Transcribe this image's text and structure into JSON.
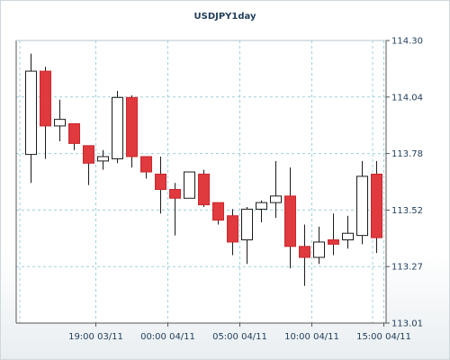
{
  "chart_data": {
    "type": "candlestick",
    "title": "USDJPY1day",
    "xlabel": "",
    "ylabel": "",
    "ylim": [
      113.01,
      114.3
    ],
    "y_ticks": [
      "114.30",
      "114.04",
      "113.78",
      "113.52",
      "113.27",
      "113.01"
    ],
    "x_ticks": [
      {
        "label": "19:00 03/11",
        "index": 4.5
      },
      {
        "label": "00:00 04/11",
        "index": 9.5
      },
      {
        "label": "05:00 04/11",
        "index": 14.5
      },
      {
        "label": "10:00 04/11",
        "index": 19.5
      },
      {
        "label": "15:00 04/11",
        "index": 24.5
      }
    ],
    "grid": true,
    "up_color": "#ffffff",
    "down_color": "#e0393e",
    "candles": [
      {
        "open": 113.78,
        "high": 114.24,
        "low": 113.65,
        "close": 114.16
      },
      {
        "open": 114.16,
        "high": 114.18,
        "low": 113.76,
        "close": 113.91
      },
      {
        "open": 113.91,
        "high": 114.03,
        "low": 113.84,
        "close": 113.94
      },
      {
        "open": 113.92,
        "high": 113.92,
        "low": 113.8,
        "close": 113.83
      },
      {
        "open": 113.82,
        "high": 113.82,
        "low": 113.64,
        "close": 113.74
      },
      {
        "open": 113.75,
        "high": 113.8,
        "low": 113.71,
        "close": 113.77
      },
      {
        "open": 113.76,
        "high": 114.07,
        "low": 113.74,
        "close": 114.04
      },
      {
        "open": 114.04,
        "high": 114.05,
        "low": 113.72,
        "close": 113.77
      },
      {
        "open": 113.77,
        "high": 113.77,
        "low": 113.67,
        "close": 113.7
      },
      {
        "open": 113.69,
        "high": 113.77,
        "low": 113.51,
        "close": 113.62
      },
      {
        "open": 113.62,
        "high": 113.65,
        "low": 113.41,
        "close": 113.58
      },
      {
        "open": 113.58,
        "high": 113.7,
        "low": 113.58,
        "close": 113.7
      },
      {
        "open": 113.69,
        "high": 113.71,
        "low": 113.54,
        "close": 113.55
      },
      {
        "open": 113.56,
        "high": 113.56,
        "low": 113.46,
        "close": 113.48
      },
      {
        "open": 113.5,
        "high": 113.53,
        "low": 113.32,
        "close": 113.38
      },
      {
        "open": 113.39,
        "high": 113.54,
        "low": 113.28,
        "close": 113.53
      },
      {
        "open": 113.53,
        "high": 113.57,
        "low": 113.47,
        "close": 113.56
      },
      {
        "open": 113.56,
        "high": 113.75,
        "low": 113.49,
        "close": 113.59
      },
      {
        "open": 113.59,
        "high": 113.72,
        "low": 113.26,
        "close": 113.36
      },
      {
        "open": 113.36,
        "high": 113.46,
        "low": 113.18,
        "close": 113.31
      },
      {
        "open": 113.31,
        "high": 113.45,
        "low": 113.28,
        "close": 113.38
      },
      {
        "open": 113.39,
        "high": 113.51,
        "low": 113.32,
        "close": 113.37
      },
      {
        "open": 113.39,
        "high": 113.5,
        "low": 113.35,
        "close": 113.42
      },
      {
        "open": 113.41,
        "high": 113.75,
        "low": 113.37,
        "close": 113.68
      },
      {
        "open": 113.69,
        "high": 113.75,
        "low": 113.33,
        "close": 113.4
      }
    ]
  }
}
